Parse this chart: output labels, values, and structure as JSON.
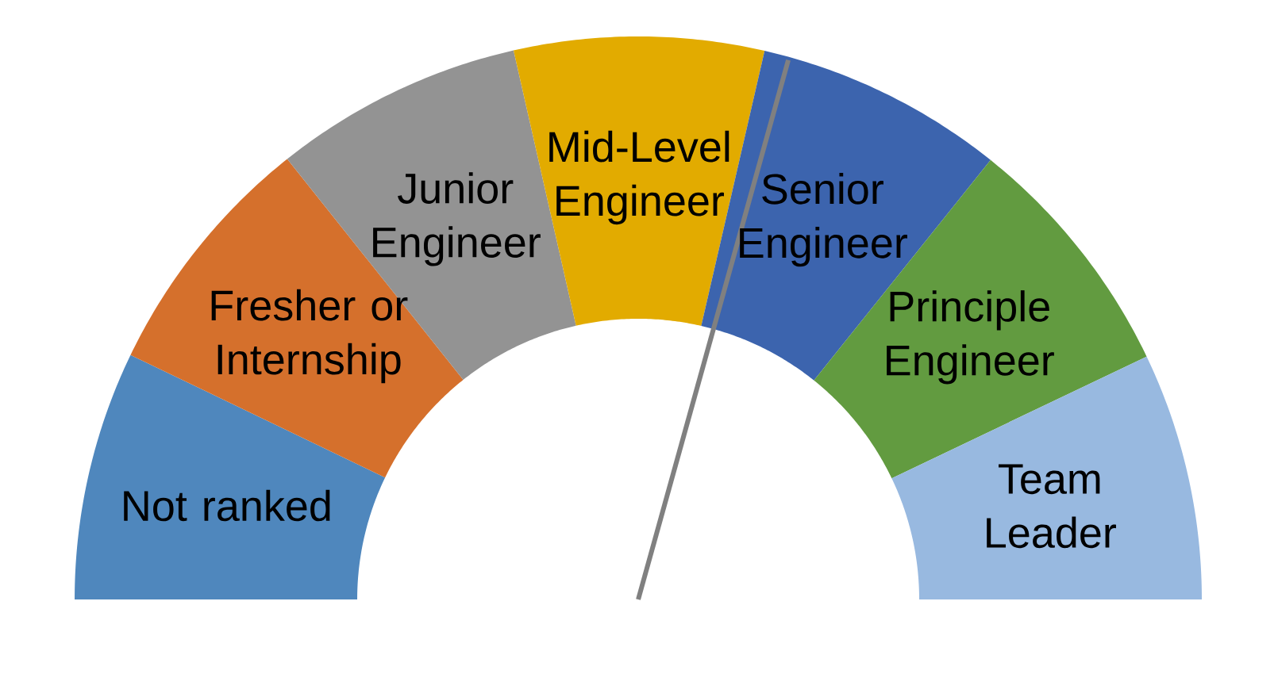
{
  "chart_data": {
    "type": "donut",
    "categories": [
      "Not ranked",
      "Fresher or Internship",
      "Junior Engineer",
      "Mid-Level Engineer",
      "Senior Engineer",
      "Principle Engineer",
      "Team Leader"
    ],
    "values": [
      14.3,
      14.3,
      14.3,
      14.3,
      14.3,
      14.3,
      14.2
    ],
    "colors": [
      "#4f87bd",
      "#d5702c",
      "#939393",
      "#e2ab00",
      "#3c64ae",
      "#629b40",
      "#98b9e0"
    ],
    "needle": "Senior Engineer"
  }
}
